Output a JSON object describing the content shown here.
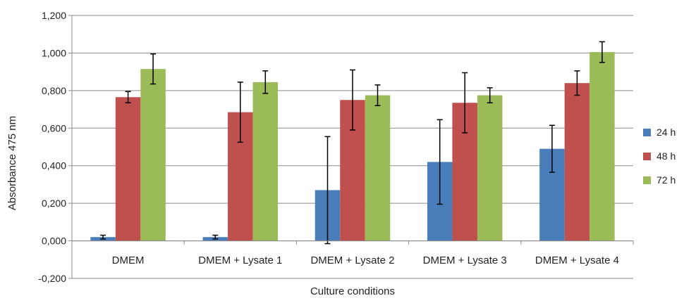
{
  "chart_data": {
    "type": "bar",
    "title": "",
    "xlabel": "Culture conditions",
    "ylabel": "Absorbance 475 nm",
    "ylim": [
      -0.2,
      1.2
    ],
    "yticks": [
      -0.2,
      0.0,
      0.2,
      0.4,
      0.6,
      0.8,
      1.0,
      1.2
    ],
    "ytick_labels": [
      "-0,200",
      "0,000",
      "0,200",
      "0,400",
      "0,600",
      "0,800",
      "1,000",
      "1,200"
    ],
    "grid": "horizontal",
    "legend_position": "right",
    "categories": [
      "DMEM",
      "DMEM + Lysate 1",
      "DMEM + Lysate 2",
      "DMEM + Lysate 3",
      "DMEM + Lysate 4"
    ],
    "series": [
      {
        "name": "24 h",
        "color": "#4a7ebb",
        "values": [
          0.02,
          0.02,
          0.27,
          0.42,
          0.49
        ],
        "errors": [
          0.01,
          0.01,
          0.285,
          0.225,
          0.125
        ]
      },
      {
        "name": "48 h",
        "color": "#c0504d",
        "values": [
          0.765,
          0.685,
          0.75,
          0.735,
          0.84
        ],
        "errors": [
          0.03,
          0.16,
          0.16,
          0.16,
          0.065
        ]
      },
      {
        "name": "72 h",
        "color": "#9bbb59",
        "values": [
          0.915,
          0.845,
          0.775,
          0.775,
          1.005
        ],
        "errors": [
          0.08,
          0.06,
          0.055,
          0.04,
          0.055
        ]
      }
    ]
  }
}
